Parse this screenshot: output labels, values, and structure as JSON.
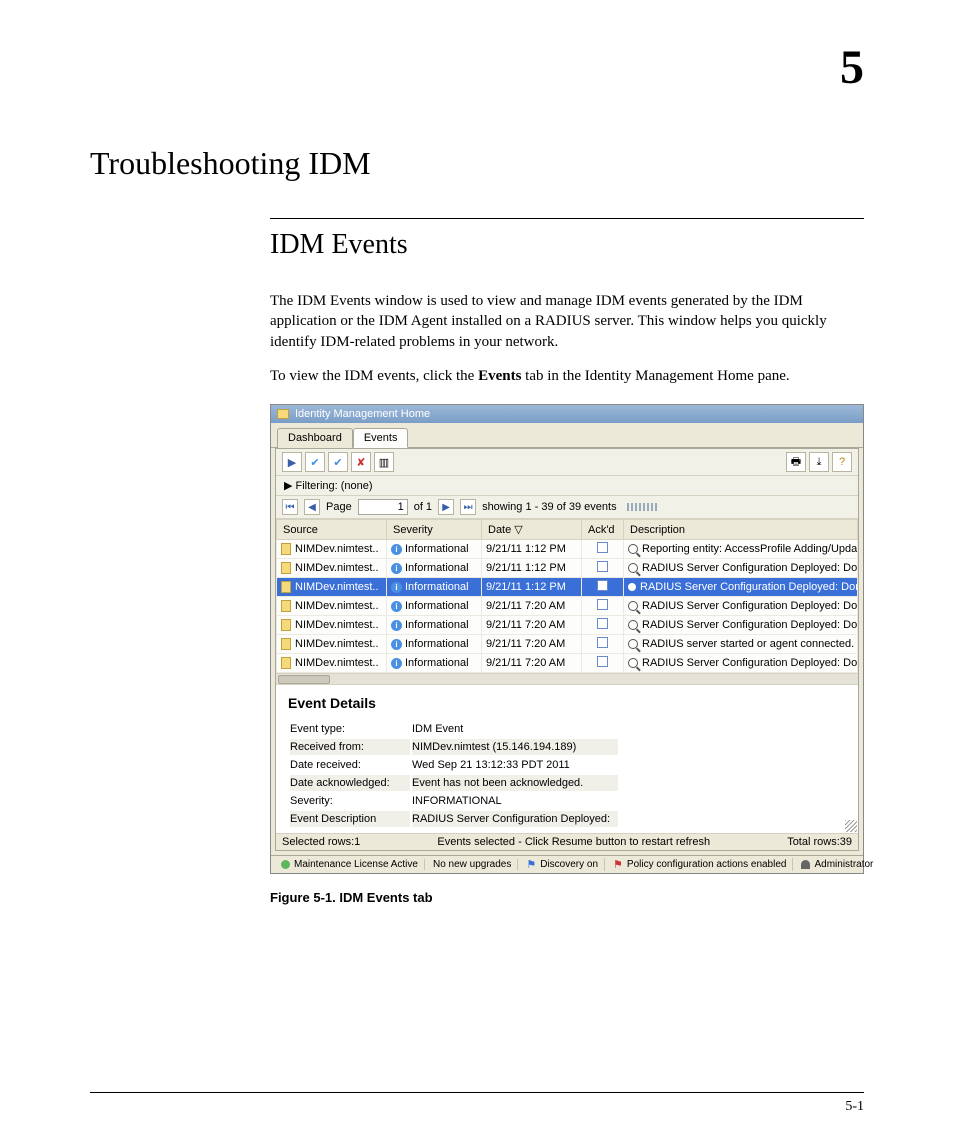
{
  "chapter_number": "5",
  "chapter_title": "Troubleshooting IDM",
  "section_title": "IDM Events",
  "paragraph1": "The IDM Events window is used to view and manage IDM events generated by the IDM application or the IDM Agent installed on a RADIUS server. This window helps you quickly identify IDM-related problems in your network.",
  "paragraph2_pre": "To view the IDM events, click the ",
  "paragraph2_bold": "Events",
  "paragraph2_post": " tab in the Identity Management Home pane.",
  "screenshot": {
    "window_title": "Identity Management Home",
    "tabs": {
      "dashboard": "Dashboard",
      "events": "Events"
    },
    "filter_label": "▶ Filtering:  (none)",
    "pager": {
      "page_label": "Page",
      "page_value": "1",
      "of_label": "of 1",
      "showing": "showing 1 - 39 of 39 events"
    },
    "columns": {
      "source": "Source",
      "severity": "Severity",
      "date": "Date ▽",
      "ack": "Ack'd",
      "desc": "Description"
    },
    "rows": [
      {
        "source": "NIMDev.nimtest..",
        "severity": "Informational",
        "date": "9/21/11 1:12 PM",
        "desc": "Reporting entity: AccessProfile Adding/Updating A",
        "selected": false
      },
      {
        "source": "NIMDev.nimtest..",
        "severity": "Informational",
        "date": "9/21/11 1:12 PM",
        "desc": "RADIUS Server Configuration Deployed: Domain =",
        "selected": false
      },
      {
        "source": "NIMDev.nimtest..",
        "severity": "Informational",
        "date": "9/21/11 1:12 PM",
        "desc": "RADIUS Server Configuration Deployed: Domain =",
        "selected": true
      },
      {
        "source": "NIMDev.nimtest..",
        "severity": "Informational",
        "date": "9/21/11 7:20 AM",
        "desc": "RADIUS Server Configuration Deployed: Domain =",
        "selected": false
      },
      {
        "source": "NIMDev.nimtest..",
        "severity": "Informational",
        "date": "9/21/11 7:20 AM",
        "desc": "RADIUS Server Configuration Deployed: Domain =",
        "selected": false
      },
      {
        "source": "NIMDev.nimtest..",
        "severity": "Informational",
        "date": "9/21/11 7:20 AM",
        "desc": "RADIUS server started or agent connected.",
        "selected": false
      },
      {
        "source": "NIMDev.nimtest..",
        "severity": "Informational",
        "date": "9/21/11 7:20 AM",
        "desc": "RADIUS Server Configuration Deployed: Domain =",
        "selected": false
      }
    ],
    "details": {
      "title": "Event Details",
      "rows": [
        [
          "Event type:",
          "IDM Event"
        ],
        [
          "Received from:",
          "NIMDev.nimtest (15.146.194.189)"
        ],
        [
          "Date received:",
          "Wed Sep 21 13:12:33 PDT 2011"
        ],
        [
          "Date acknowledged:",
          "Event has not been acknowledged."
        ],
        [
          "Severity:",
          "INFORMATIONAL"
        ],
        [
          "Event Description",
          "RADIUS Server Configuration Deployed:"
        ]
      ]
    },
    "status": {
      "left": "Selected rows:1",
      "center": "Events selected - Click Resume button to restart refresh",
      "right": "Total rows:39"
    },
    "footer": {
      "license": "Maintenance License Active",
      "upgrades": "No new upgrades",
      "discovery": "Discovery on",
      "policy": "Policy configuration actions enabled",
      "admin": "Administrator"
    }
  },
  "figure_caption": "Figure 5-1. IDM Events tab",
  "page_number": "5-1"
}
